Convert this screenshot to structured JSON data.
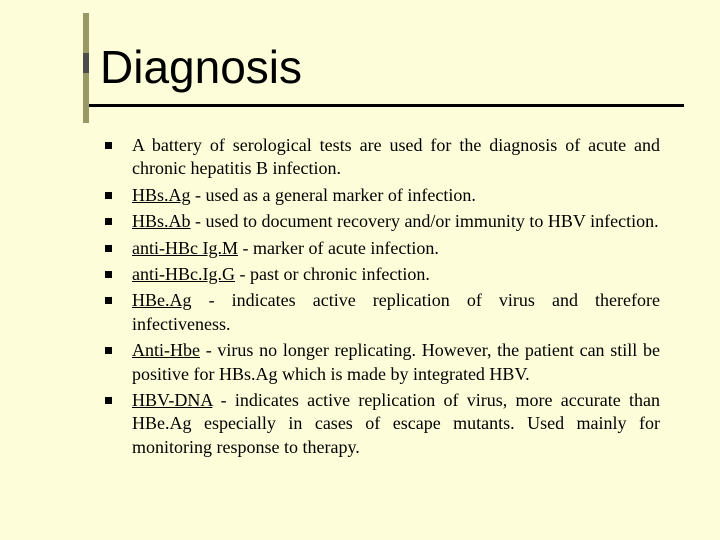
{
  "title": "Diagnosis",
  "items": [
    {
      "term": "",
      "text": "A battery of serological tests are used for the diagnosis of acute and chronic hepatitis B infection."
    },
    {
      "term": "HBs.Ag",
      "text": " - used as a general marker of infection."
    },
    {
      "term": "HBs.Ab",
      "text": " - used to document recovery and/or immunity to HBV infection."
    },
    {
      "term": "anti-HBc Ig.M",
      "text": " - marker of acute infection."
    },
    {
      "term": "anti-HBc.Ig.G",
      "text": " - past or chronic infection."
    },
    {
      "term": "HBe.Ag",
      "text": " - indicates active replication of virus and therefore infectiveness."
    },
    {
      "term": "Anti-Hbe",
      "text": " - virus no longer replicating. However, the patient can still be positive for HBs.Ag which is made by integrated HBV."
    },
    {
      "term": "HBV-DNA",
      "text": " - indicates active replication of virus, more accurate than HBe.Ag especially in cases of escape mutants. Used mainly for monitoring response to therapy."
    }
  ],
  "colors": {
    "background": "#fdfdd9",
    "accent_light": "#999966",
    "accent_dark": "#4d4d4d",
    "text": "#000000"
  }
}
